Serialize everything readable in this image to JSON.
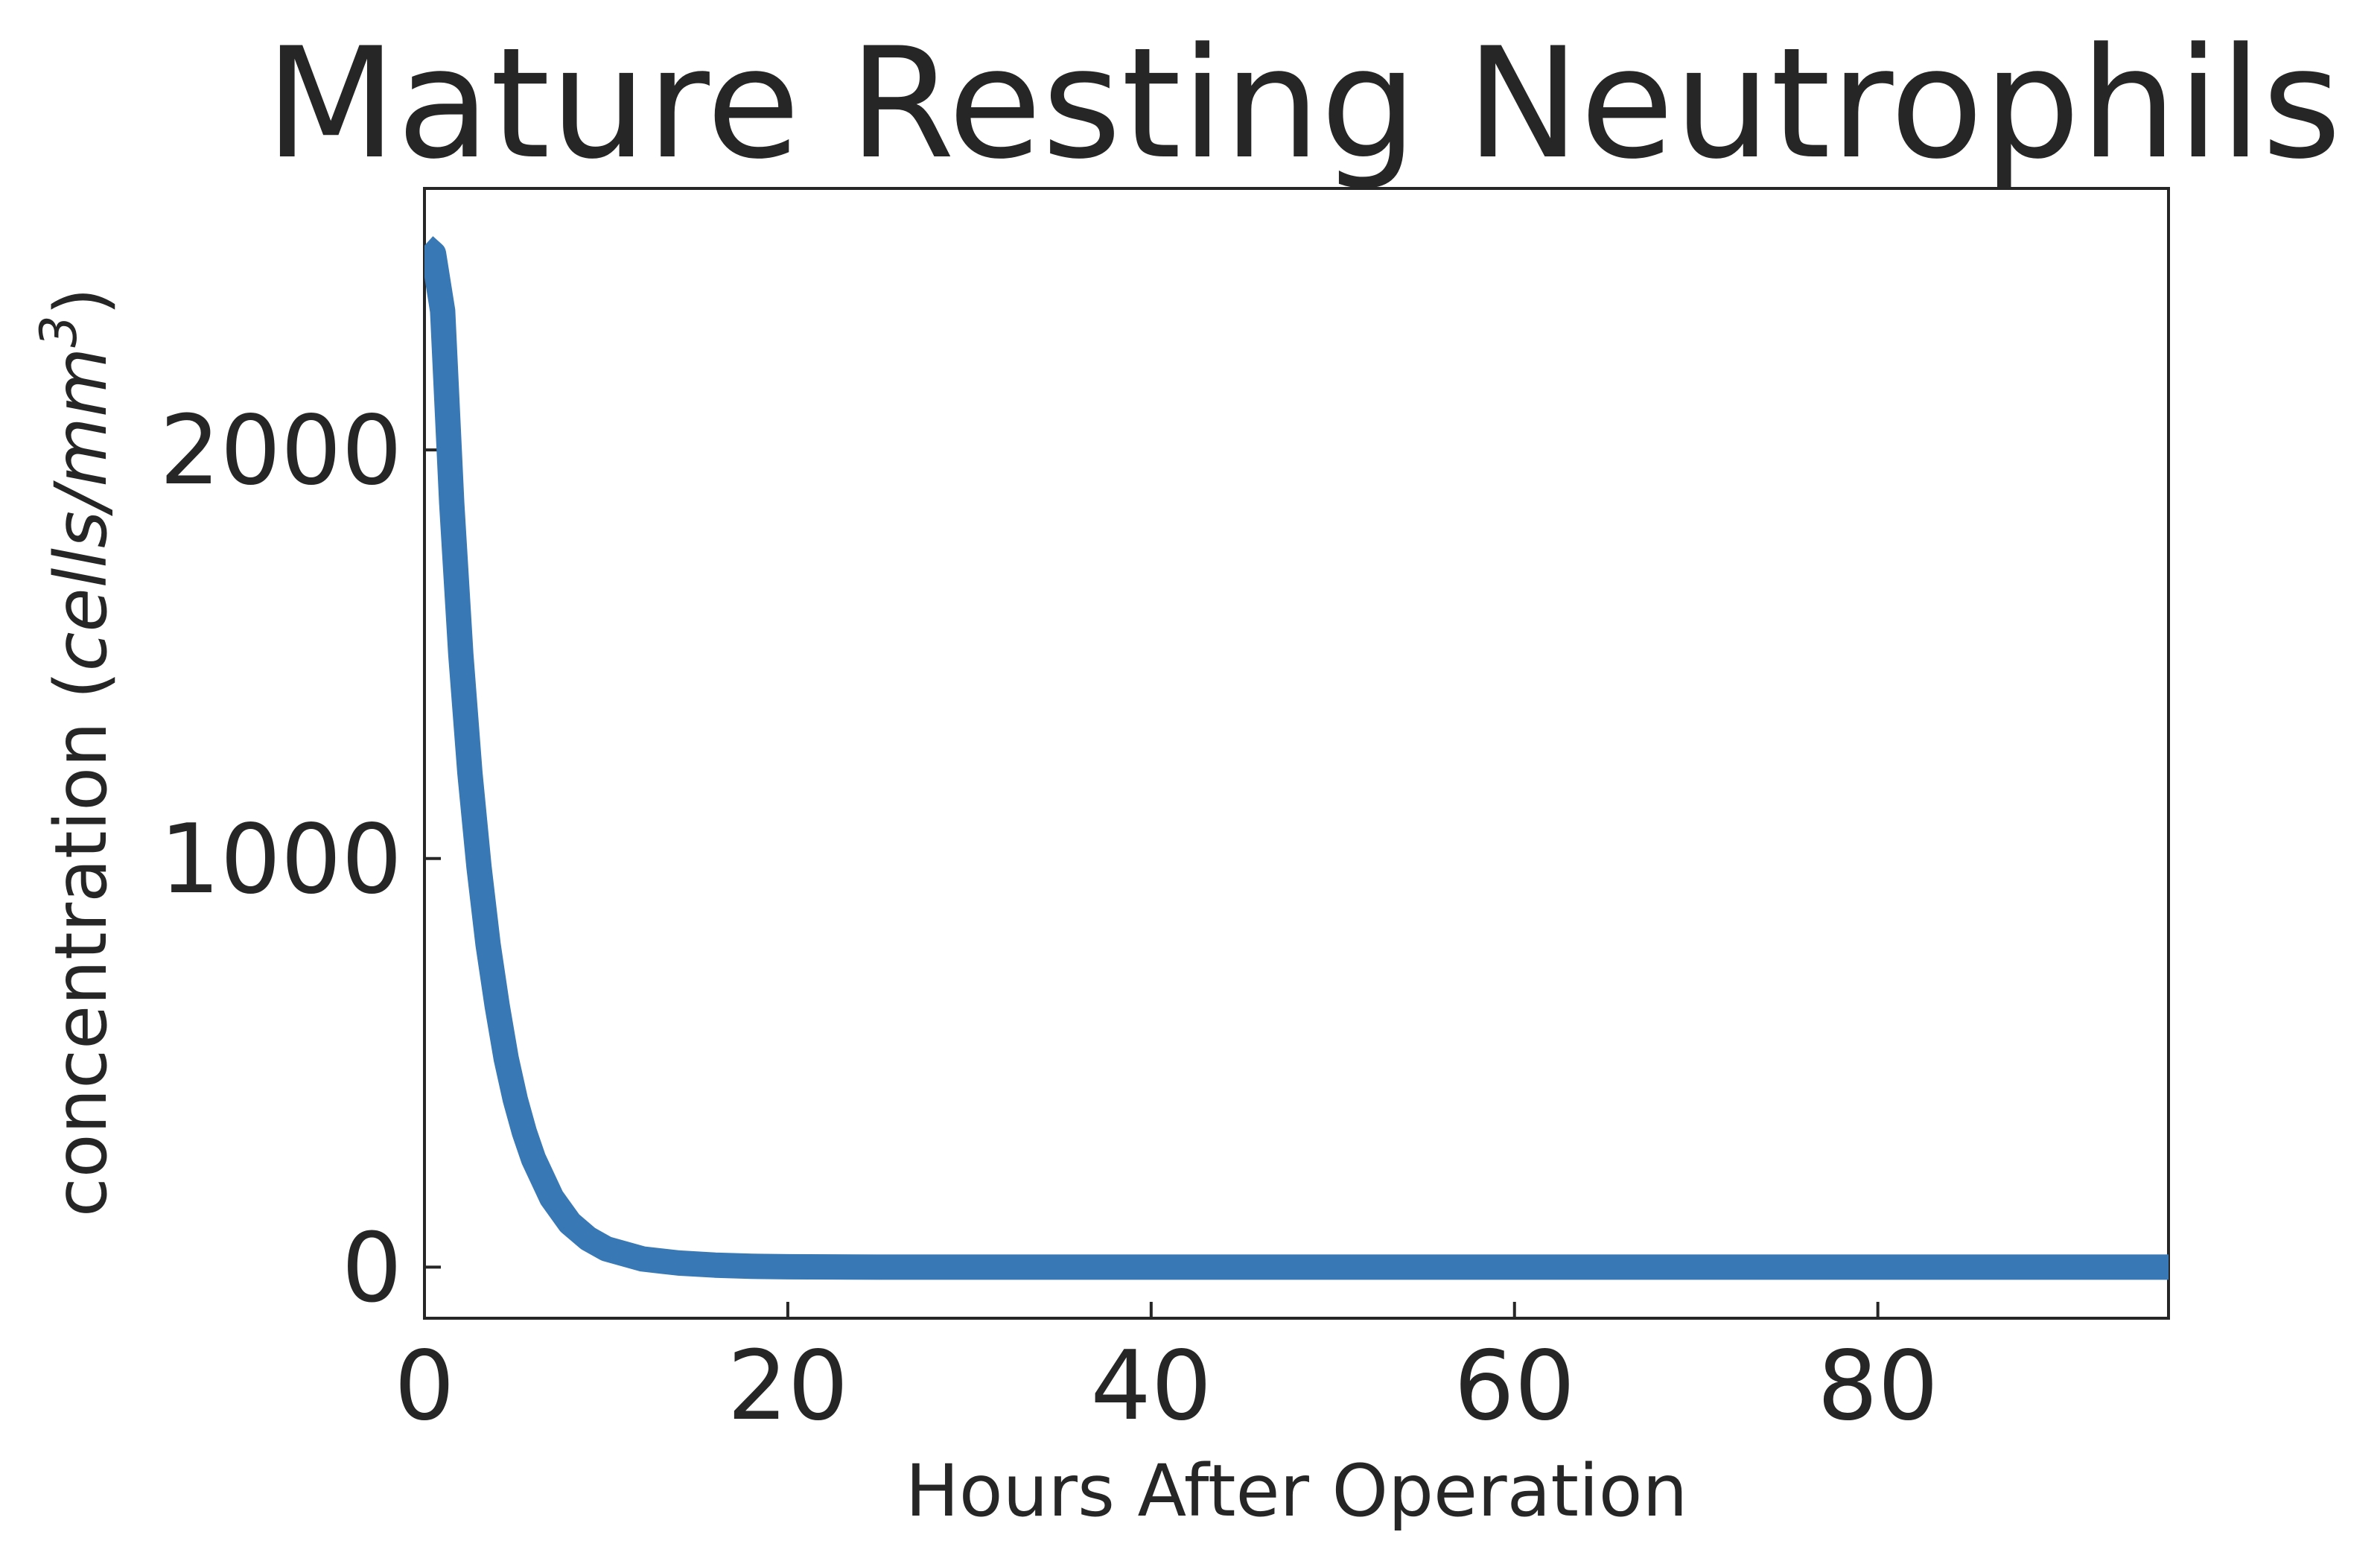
{
  "chart_data": {
    "type": "line",
    "title": "Mature Resting Neutrophils",
    "xlabel": "Hours After Operation",
    "ylabel": "concentration",
    "ylabel_unit": "cells/mm",
    "ylabel_unit_exponent": "3",
    "xlim": [
      0,
      96
    ],
    "ylim": [
      -125,
      2640
    ],
    "xticks": [
      0,
      20,
      40,
      60,
      80
    ],
    "xtick_labels": [
      "0",
      "20",
      "40",
      "60",
      "80"
    ],
    "yticks": [
      0,
      1000,
      2000
    ],
    "ytick_labels": [
      "0",
      "1000",
      "2000"
    ],
    "grid": false,
    "legend": "none",
    "series": [
      {
        "name": "Mature Resting Neutrophils",
        "color": "#3778b5",
        "x": [
          0,
          0.5,
          1,
          1.5,
          2,
          2.5,
          3,
          3.5,
          4,
          4.5,
          5,
          5.5,
          6,
          7,
          8,
          9,
          10,
          12,
          14,
          16,
          18,
          20,
          25,
          30,
          40,
          50,
          60,
          70,
          80,
          90,
          96
        ],
        "y": [
          2500,
          2480,
          2340,
          1870,
          1500,
          1210,
          980,
          790,
          640,
          510,
          410,
          330,
          265,
          170,
          108,
          70,
          45,
          20,
          10,
          5,
          2,
          1,
          0,
          0,
          0,
          0,
          0,
          0,
          0,
          0,
          0
        ]
      }
    ]
  }
}
